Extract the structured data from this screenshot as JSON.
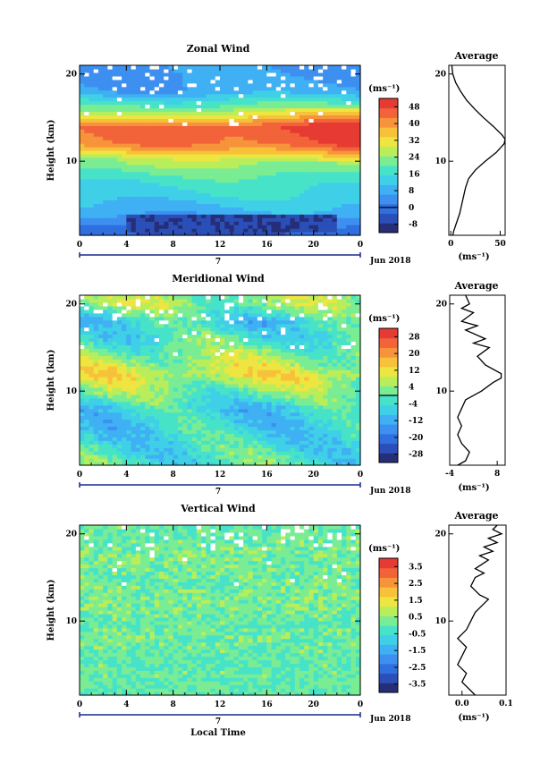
{
  "chart_data": [
    {
      "type": "heatmap",
      "title": "Zonal Wind",
      "ylabel": "Height (km)",
      "xticks": [
        "0",
        "4",
        "8",
        "12",
        "16",
        "20",
        "0"
      ],
      "yticks": [
        "10",
        "20"
      ],
      "xlim": [
        0,
        24
      ],
      "ylim": [
        1.5,
        21
      ],
      "day_label": "7",
      "date_label": "Jun 2018",
      "colorbar": {
        "unit": "(ms⁻¹)",
        "ticks": [
          "48",
          "40",
          "32",
          "24",
          "16",
          "8",
          "0",
          "-8"
        ],
        "tick_values": [
          48,
          40,
          32,
          24,
          16,
          8,
          0,
          -8
        ],
        "range": [
          -12,
          52
        ],
        "zero_line": 0
      },
      "field": {
        "profile_height_km": [
          2,
          4,
          6,
          8,
          10,
          12,
          14,
          16,
          18,
          20
        ],
        "profile_value": [
          -4,
          8,
          14,
          18,
          26,
          44,
          46,
          24,
          8,
          6
        ],
        "negative_region": {
          "height_km": [
            2,
            3.8
          ],
          "time_h": [
            4,
            22
          ]
        },
        "data_gaps": true
      },
      "average_profile": {
        "title": "Average",
        "xlabel": "(ms⁻¹)",
        "xticks": [
          "0",
          "50"
        ],
        "xlim": [
          -2,
          55
        ],
        "yticks": [
          "10",
          "20"
        ],
        "height_km": [
          1.5,
          2,
          3,
          4,
          5,
          6,
          7,
          8,
          9,
          10,
          11,
          12,
          12.5,
          13,
          14,
          15,
          16,
          17,
          18,
          19,
          20,
          21
        ],
        "values": [
          2,
          3,
          6,
          9,
          11,
          13,
          15,
          18,
          25,
          35,
          46,
          54,
          55,
          52,
          43,
          33,
          24,
          16,
          10,
          5,
          2,
          1
        ]
      }
    },
    {
      "type": "heatmap",
      "title": "Meridional Wind",
      "ylabel": "Height (km)",
      "xticks": [
        "0",
        "4",
        "8",
        "12",
        "16",
        "20",
        "0"
      ],
      "yticks": [
        "10",
        "20"
      ],
      "xlim": [
        0,
        24
      ],
      "ylim": [
        1.5,
        21
      ],
      "day_label": "7",
      "date_label": "Jun 2018",
      "colorbar": {
        "unit": "(ms⁻¹)",
        "ticks": [
          "28",
          "20",
          "12",
          "4",
          "-4",
          "-12",
          "-20",
          "-28"
        ],
        "tick_values": [
          28,
          20,
          12,
          4,
          -4,
          -12,
          -20,
          -28
        ],
        "range": [
          -32,
          32
        ],
        "zero_line": 0
      },
      "field": {
        "profile_height_km": [
          2,
          4,
          6,
          8,
          10,
          12,
          14,
          16,
          18,
          20
        ],
        "profile_value": [
          -2,
          -4,
          -6,
          -6,
          2,
          10,
          4,
          -2,
          -6,
          4
        ],
        "data_gaps": true
      },
      "average_profile": {
        "title": "Average",
        "xlabel": "(ms⁻¹)",
        "xticks": [
          "-4",
          "8"
        ],
        "xlim": [
          -4,
          10
        ],
        "yticks": [
          "10",
          "20"
        ],
        "height_km": [
          1.5,
          2,
          3,
          4,
          5,
          6,
          7,
          8,
          9,
          10,
          11,
          11.5,
          12,
          13,
          14,
          15,
          15.5,
          16,
          17,
          17.5,
          18,
          19,
          19.5,
          20,
          21
        ],
        "values": [
          -2,
          0,
          1,
          -1,
          -2,
          -1,
          -2,
          -1,
          0,
          4,
          7,
          9,
          9,
          5,
          3,
          6,
          2,
          5,
          0,
          3,
          -1,
          2,
          -1,
          1,
          0
        ]
      }
    },
    {
      "type": "heatmap",
      "title": "Vertical Wind",
      "xlabel": "Local Time",
      "ylabel": "Height (km)",
      "xticks": [
        "0",
        "4",
        "8",
        "12",
        "16",
        "20",
        "0"
      ],
      "yticks": [
        "10",
        "20"
      ],
      "xlim": [
        0,
        24
      ],
      "ylim": [
        1.5,
        21
      ],
      "day_label": "7",
      "date_label": "Jun 2018",
      "colorbar": {
        "unit": "(ms⁻¹)",
        "ticks": [
          "3.5",
          "2.5",
          "1.5",
          "0.5",
          "-0.5",
          "-1.5",
          "-2.5",
          "-3.5"
        ],
        "tick_values": [
          3.5,
          2.5,
          1.5,
          0.5,
          -0.5,
          -1.5,
          -2.5,
          -3.5
        ],
        "range": [
          -4,
          4
        ],
        "zero_line": null
      },
      "field": {
        "profile_height_km": [
          2,
          4,
          6,
          8,
          10,
          12,
          14,
          16,
          18,
          20
        ],
        "profile_value": [
          0.0,
          0.1,
          0.0,
          0.2,
          0.1,
          0.3,
          0.2,
          0.2,
          0.3,
          0.1
        ],
        "data_gaps": true
      },
      "average_profile": {
        "title": "Average",
        "xlabel": "(ms⁻¹)",
        "xticks": [
          "0.0",
          "0.1"
        ],
        "xlim": [
          -0.03,
          0.1
        ],
        "yticks": [
          "10",
          "20"
        ],
        "height_km": [
          1.5,
          2,
          3,
          4,
          5,
          6,
          7,
          8,
          9,
          10,
          11,
          12,
          12.5,
          13,
          14,
          15,
          15.5,
          16,
          17,
          17.5,
          18,
          18.5,
          19,
          19.5,
          20,
          20.5,
          21
        ],
        "values": [
          0.03,
          0.02,
          0.0,
          0.01,
          -0.01,
          0.0,
          0.01,
          -0.01,
          0.01,
          0.02,
          0.03,
          0.05,
          0.06,
          0.04,
          0.02,
          0.03,
          0.05,
          0.03,
          0.06,
          0.04,
          0.07,
          0.05,
          0.08,
          0.06,
          0.09,
          0.07,
          0.08
        ]
      }
    }
  ]
}
